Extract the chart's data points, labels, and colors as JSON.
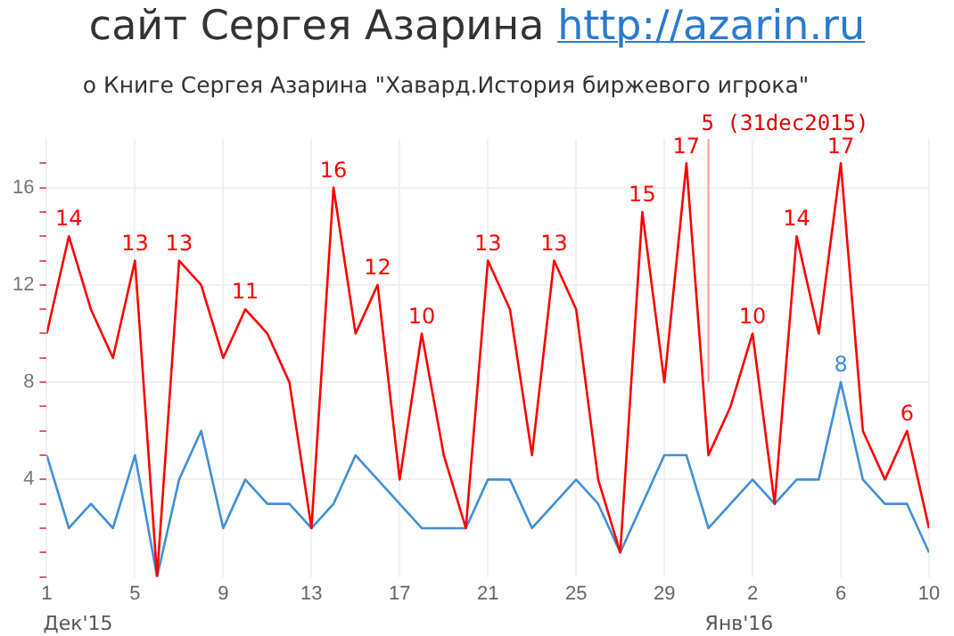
{
  "chart_data": {
    "type": "line",
    "title": "сайт Сергея Азарина http://azarin.ru",
    "subtitle": "о Книге Сергея Азарина \"Хавард.История биржевого игрока\"",
    "x": [
      "2015-12-01",
      "2015-12-02",
      "2015-12-03",
      "2015-12-04",
      "2015-12-05",
      "2015-12-06",
      "2015-12-07",
      "2015-12-08",
      "2015-12-09",
      "2015-12-10",
      "2015-12-11",
      "2015-12-12",
      "2015-12-13",
      "2015-12-14",
      "2015-12-15",
      "2015-12-16",
      "2015-12-17",
      "2015-12-18",
      "2015-12-19",
      "2015-12-20",
      "2015-12-21",
      "2015-12-22",
      "2015-12-23",
      "2015-12-24",
      "2015-12-25",
      "2015-12-26",
      "2015-12-27",
      "2015-12-28",
      "2015-12-29",
      "2015-12-30",
      "2015-12-31",
      "2016-01-01",
      "2016-01-02",
      "2016-01-03",
      "2016-01-04",
      "2016-01-05",
      "2016-01-06",
      "2016-01-07",
      "2016-01-08",
      "2016-01-09",
      "2016-01-10"
    ],
    "series": [
      {
        "color": "#ff0000",
        "values": [
          10,
          14,
          11,
          9,
          13,
          0,
          13,
          12,
          9,
          11,
          10,
          8,
          2,
          16,
          10,
          12,
          4,
          10,
          5,
          2,
          13,
          11,
          5,
          13,
          11,
          4,
          1,
          15,
          8,
          17,
          5,
          7,
          10,
          3,
          14,
          10,
          17,
          6,
          4,
          6,
          2
        ],
        "value_labels": [
          null,
          "14",
          null,
          null,
          "13",
          null,
          "13",
          null,
          null,
          "11",
          null,
          null,
          null,
          "16",
          null,
          "12",
          null,
          "10",
          null,
          null,
          "13",
          null,
          null,
          "13",
          null,
          null,
          null,
          "15",
          null,
          "17",
          null,
          null,
          "10",
          null,
          "14",
          null,
          "17",
          null,
          null,
          "6",
          null
        ]
      },
      {
        "color": "#3f8fd8",
        "values": [
          5,
          2,
          3,
          2,
          5,
          0,
          4,
          6,
          2,
          4,
          3,
          3,
          2,
          3,
          5,
          4,
          3,
          2,
          2,
          2,
          4,
          4,
          2,
          3,
          4,
          3,
          1,
          3,
          5,
          5,
          2,
          3,
          4,
          3,
          4,
          4,
          8,
          4,
          3,
          3,
          1
        ],
        "value_labels": [
          null,
          null,
          null,
          null,
          null,
          null,
          null,
          null,
          null,
          null,
          null,
          null,
          null,
          null,
          null,
          null,
          null,
          null,
          null,
          null,
          null,
          null,
          null,
          null,
          null,
          null,
          null,
          null,
          null,
          null,
          null,
          null,
          null,
          null,
          null,
          null,
          "8",
          null,
          null,
          null,
          null
        ]
      }
    ],
    "xlim": [
      "2015-12-01",
      "2016-01-10"
    ],
    "xticks": [
      {
        "value": "2015-12-01",
        "label": "1"
      },
      {
        "value": "2015-12-05",
        "label": "5"
      },
      {
        "value": "2015-12-09",
        "label": "9"
      },
      {
        "value": "2015-12-13",
        "label": "13"
      },
      {
        "value": "2015-12-17",
        "label": "17"
      },
      {
        "value": "2015-12-21",
        "label": "21"
      },
      {
        "value": "2015-12-25",
        "label": "25"
      },
      {
        "value": "2015-12-29",
        "label": "29"
      },
      {
        "value": "2016-01-02",
        "label": "2"
      },
      {
        "value": "2016-01-06",
        "label": "6"
      },
      {
        "value": "2016-01-10",
        "label": "10"
      }
    ],
    "ylim": [
      0,
      18
    ],
    "yticks": [
      {
        "value": 0,
        "label": null
      },
      {
        "value": 1,
        "label": null
      },
      {
        "value": 2,
        "label": null
      },
      {
        "value": 3,
        "label": null
      },
      4,
      {
        "value": 5,
        "label": null
      },
      {
        "value": 6,
        "label": null
      },
      {
        "value": 7,
        "label": null
      },
      8,
      {
        "value": 9,
        "label": null
      },
      {
        "value": 10,
        "label": null
      },
      {
        "value": 11,
        "label": null
      },
      12,
      {
        "value": 13,
        "label": null
      },
      {
        "value": 14,
        "label": null
      },
      {
        "value": 15,
        "label": null
      },
      16,
      {
        "value": 17,
        "label": null
      }
    ],
    "ref_lines": [
      {
        "axis": "x",
        "value": "2015-12-31",
        "label": "5 (31dec2015)",
        "color": "#ff9999"
      }
    ],
    "annotations": [
      "Дек'15",
      "Янв'16"
    ],
    "grid": true,
    "legend": false,
    "marker": "none",
    "line_style": "solid"
  }
}
